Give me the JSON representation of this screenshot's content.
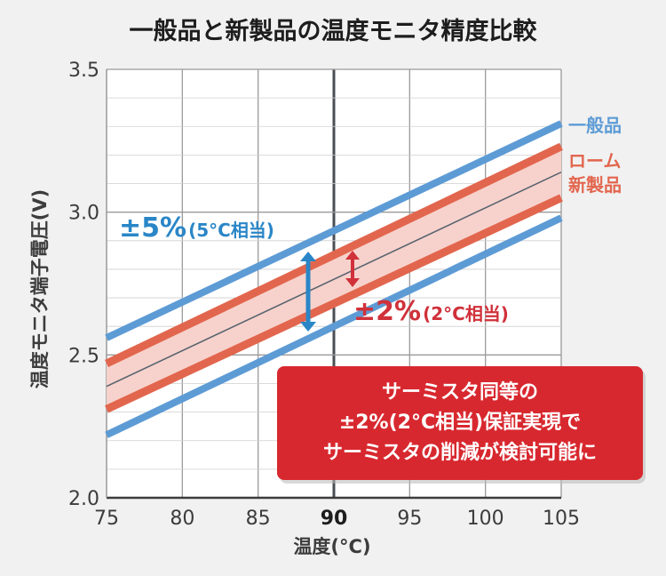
{
  "chart_data": {
    "type": "line",
    "title": "一般品と新製品の温度モニタ精度比較",
    "xlabel": "温度(°C)",
    "ylabel": "温度モニタ端子電圧(V)",
    "xlim": [
      75,
      105
    ],
    "ylim": [
      2.0,
      3.5
    ],
    "x_ticks": [
      "75",
      "80",
      "85",
      "90",
      "95",
      "100",
      "105"
    ],
    "y_ticks": [
      "2.0",
      "2.5",
      "3.0",
      "3.5"
    ],
    "highlight_x": 90,
    "grid": true,
    "x": [
      75,
      105
    ],
    "series": [
      {
        "name": "一般品",
        "role": "upper",
        "values": [
          2.56,
          3.31
        ],
        "color": "#5d9bd5"
      },
      {
        "name": "ローム新製品",
        "role": "upper",
        "values": [
          2.47,
          3.23
        ],
        "color": "#e2664e"
      },
      {
        "role": "center",
        "values": [
          2.39,
          3.14
        ],
        "color": "#5a6470"
      },
      {
        "name": "ローム新製品",
        "role": "lower",
        "values": [
          2.31,
          3.05
        ],
        "color": "#e2664e"
      },
      {
        "name": "一般品",
        "role": "lower",
        "values": [
          2.22,
          2.98
        ],
        "color": "#5d9bd5"
      }
    ],
    "legend": {
      "general": "一般品",
      "new_line1": "ローム",
      "new_line2": "新製品"
    },
    "annotations": {
      "blue_main": "±5%",
      "blue_sub": "(5°C相当)",
      "red_main": "±2%",
      "red_sub": "(2°C相当)"
    },
    "callout": [
      "サーミスタ同等の",
      "±2%(2°C相当)保証実現で",
      "サーミスタの削減が検討可能に"
    ],
    "colors": {
      "general": "#5d9bd5",
      "new": "#e2664e",
      "band_fill": "#f7d2cc",
      "center_line": "#5a6470",
      "callout_bg": "#d8282f",
      "blue_arrow": "#2a86c7",
      "red_arrow": "#d0313a"
    }
  }
}
